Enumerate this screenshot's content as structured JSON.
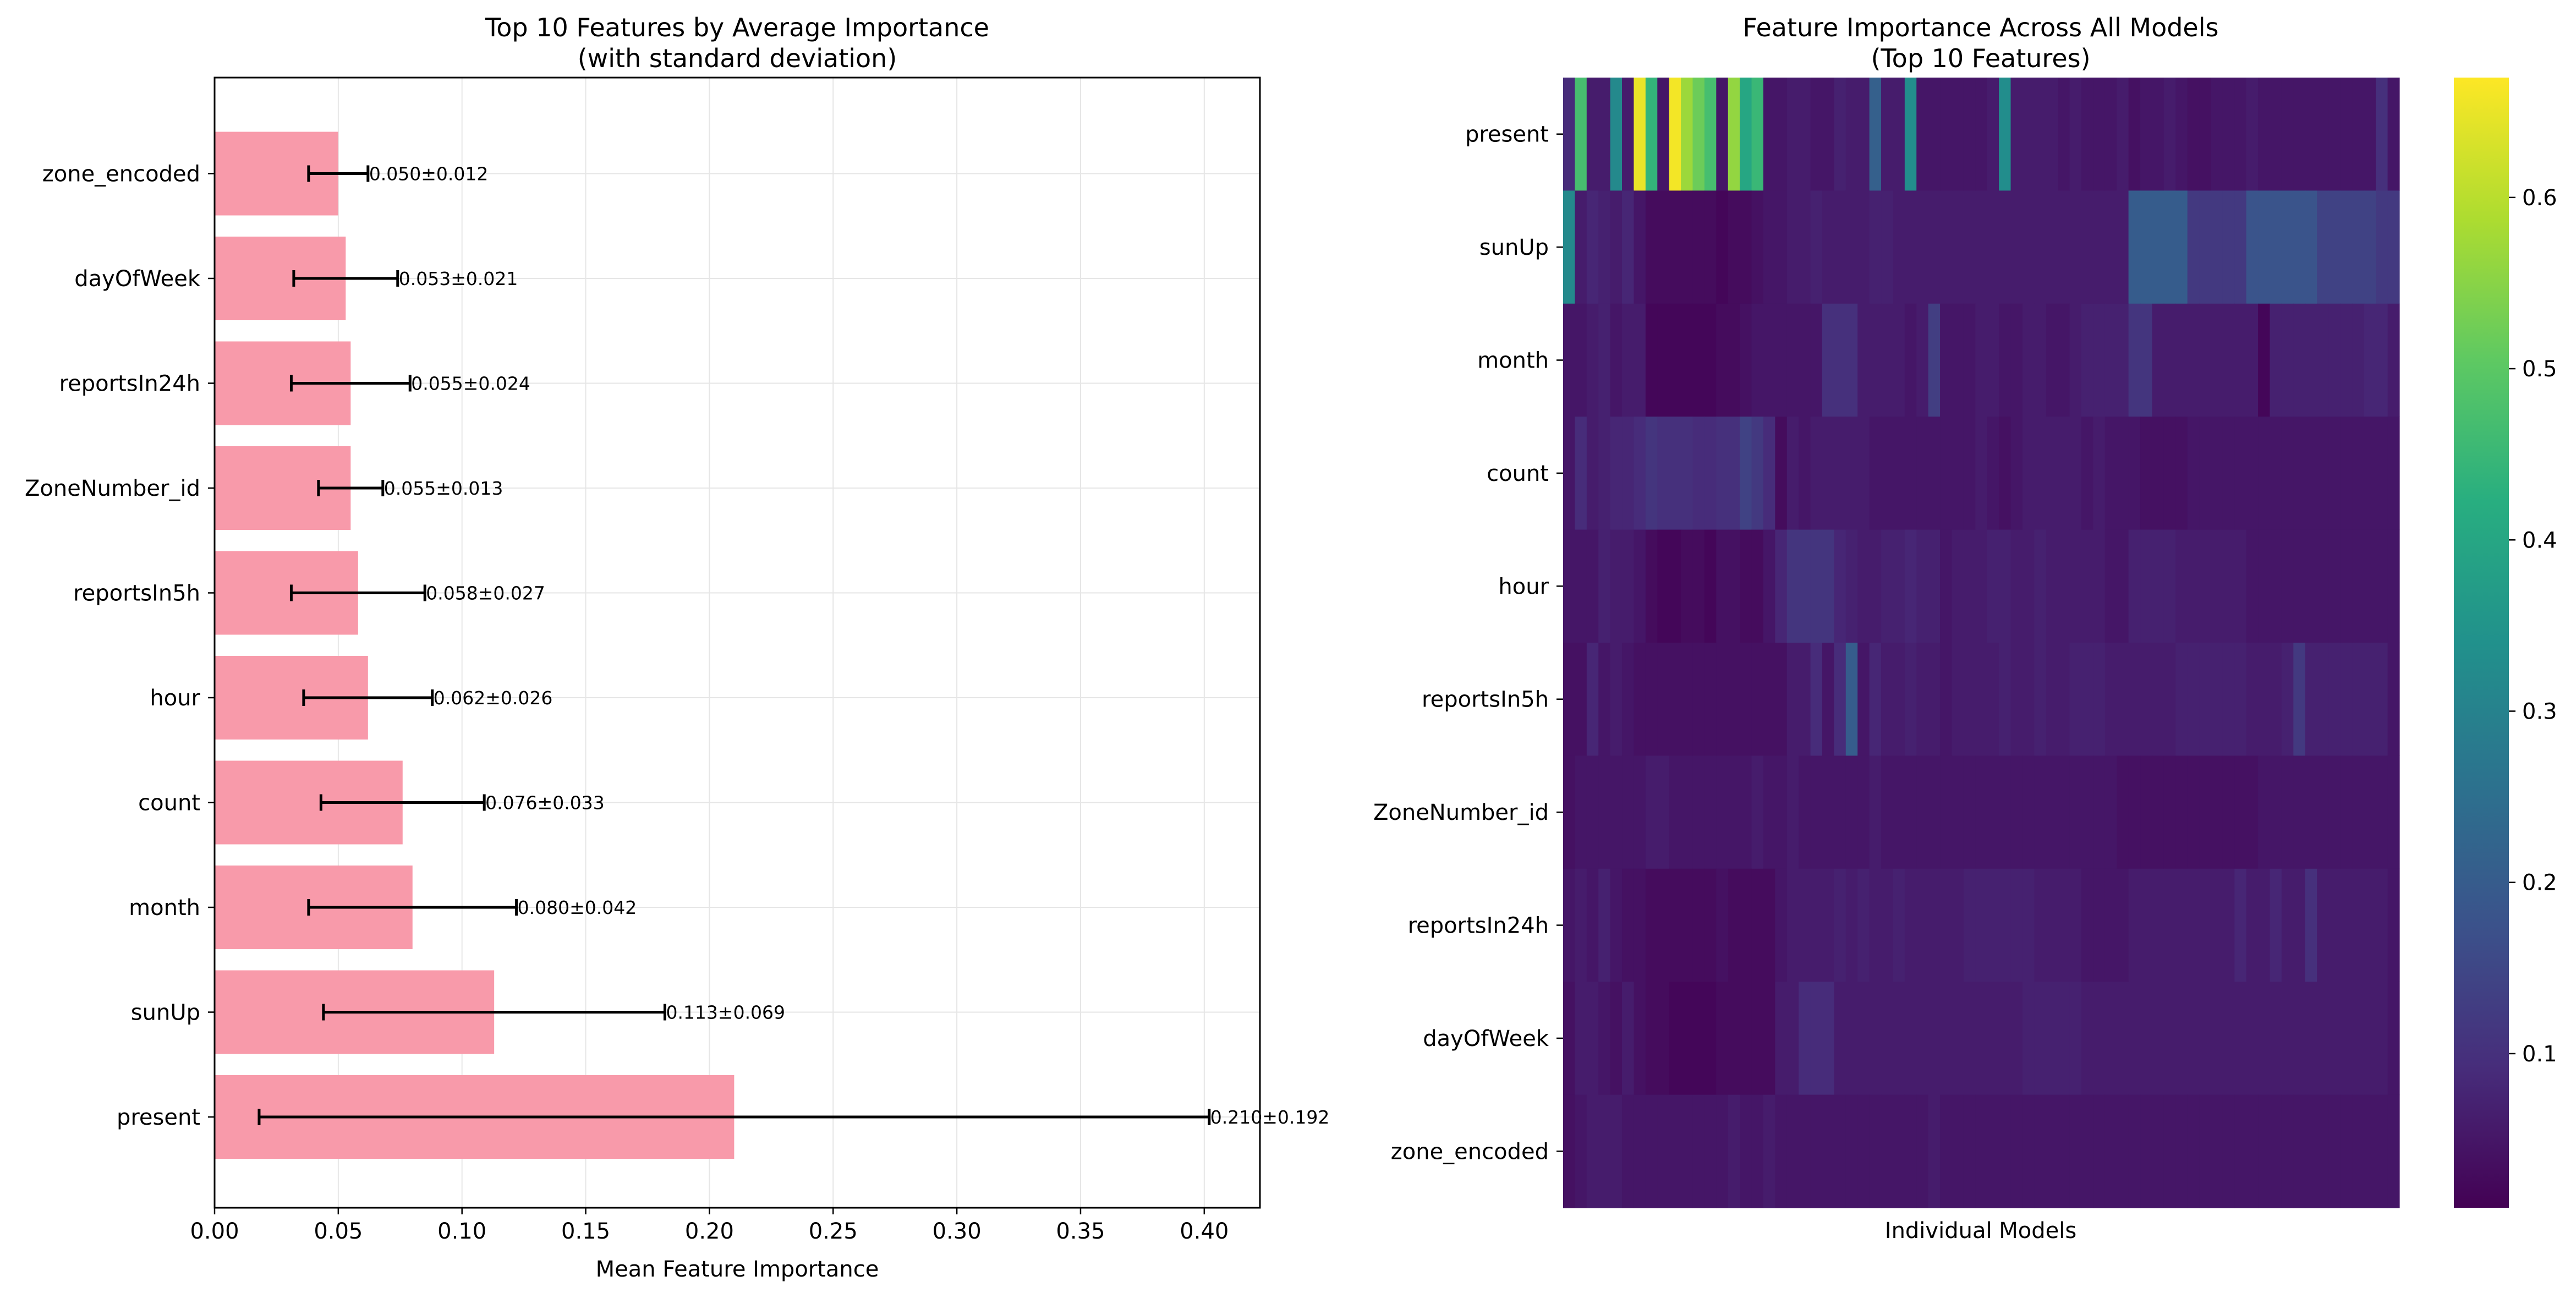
{
  "chart_data": [
    {
      "type": "bar",
      "orientation": "horizontal",
      "title": "Top 10 Features by Average Importance",
      "subtitle": "(with standard deviation)",
      "xlabel": "Mean Feature Importance",
      "ylabel": "",
      "xlim": [
        0.0,
        0.4225
      ],
      "xticks": [
        "0.00",
        "0.05",
        "0.10",
        "0.15",
        "0.20",
        "0.25",
        "0.30",
        "0.35",
        "0.40"
      ],
      "grid": true,
      "bar_color": "#f89aaa",
      "categories": [
        "present",
        "sunUp",
        "month",
        "count",
        "hour",
        "reportsIn5h",
        "ZoneNumber_id",
        "reportsIn24h",
        "dayOfWeek",
        "zone_encoded"
      ],
      "values": [
        0.21,
        0.113,
        0.08,
        0.076,
        0.062,
        0.058,
        0.055,
        0.055,
        0.053,
        0.05
      ],
      "errors": [
        0.192,
        0.069,
        0.042,
        0.033,
        0.026,
        0.027,
        0.013,
        0.024,
        0.021,
        0.012
      ],
      "value_labels": [
        "0.210±0.192",
        "0.113±0.069",
        "0.080±0.042",
        "0.076±0.033",
        "0.062±0.026",
        "0.058±0.027",
        "0.055±0.013",
        "0.055±0.024",
        "0.053±0.021",
        "0.050±0.012"
      ]
    },
    {
      "type": "heatmap",
      "title": "Feature Importance Across All Models",
      "subtitle": "(Top 10 Features)",
      "xlabel": "Individual Models",
      "ylabel": "",
      "colormap": "viridis",
      "vmin": 0.01,
      "vmax": 0.67,
      "colorbar_ticks": [
        0.1,
        0.2,
        0.3,
        0.4,
        0.5,
        0.6
      ],
      "colorbar_tick_labels": [
        "0.1",
        "0.2",
        "0.3",
        "0.4",
        "0.5",
        "0.6"
      ],
      "rows": [
        "present",
        "sunUp",
        "month",
        "count",
        "hour",
        "reportsIn5h",
        "ZoneNumber_id",
        "reportsIn24h",
        "dayOfWeek",
        "zone_encoded"
      ],
      "values": [
        [
          0.09,
          0.47,
          0.06,
          0.06,
          0.32,
          0.06,
          0.65,
          0.44,
          0.05,
          0.66,
          0.57,
          0.52,
          0.47,
          0.05,
          0.56,
          0.4,
          0.45,
          0.05,
          0.05,
          0.06,
          0.06,
          0.05,
          0.05,
          0.07,
          0.06,
          0.06,
          0.21,
          0.06,
          0.06,
          0.33,
          0.05,
          0.05,
          0.05,
          0.05,
          0.05,
          0.05,
          0.06,
          0.33,
          0.06,
          0.06,
          0.06,
          0.06,
          0.05,
          0.06,
          0.05,
          0.05,
          0.05,
          0.06,
          0.04,
          0.05,
          0.05,
          0.06,
          0.05,
          0.04,
          0.04,
          0.05,
          0.05,
          0.05,
          0.06,
          0.05,
          0.05,
          0.05,
          0.05,
          0.05,
          0.05,
          0.05,
          0.05,
          0.05,
          0.05,
          0.1,
          0.05
        ],
        [
          0.32,
          0.06,
          0.08,
          0.07,
          0.06,
          0.08,
          0.05,
          0.03,
          0.03,
          0.03,
          0.03,
          0.03,
          0.03,
          0.02,
          0.03,
          0.03,
          0.04,
          0.05,
          0.05,
          0.06,
          0.06,
          0.07,
          0.06,
          0.06,
          0.06,
          0.06,
          0.07,
          0.07,
          0.06,
          0.06,
          0.06,
          0.06,
          0.06,
          0.06,
          0.06,
          0.06,
          0.06,
          0.06,
          0.06,
          0.06,
          0.06,
          0.06,
          0.06,
          0.06,
          0.06,
          0.06,
          0.06,
          0.06,
          0.2,
          0.2,
          0.2,
          0.2,
          0.2,
          0.12,
          0.12,
          0.12,
          0.12,
          0.12,
          0.18,
          0.18,
          0.18,
          0.18,
          0.18,
          0.18,
          0.14,
          0.14,
          0.14,
          0.14,
          0.14,
          0.12,
          0.12
        ],
        [
          0.05,
          0.05,
          0.06,
          0.07,
          0.05,
          0.06,
          0.06,
          0.02,
          0.02,
          0.02,
          0.02,
          0.02,
          0.02,
          0.03,
          0.03,
          0.04,
          0.05,
          0.05,
          0.05,
          0.05,
          0.05,
          0.05,
          0.1,
          0.1,
          0.1,
          0.06,
          0.06,
          0.06,
          0.06,
          0.05,
          0.06,
          0.13,
          0.05,
          0.05,
          0.05,
          0.06,
          0.06,
          0.05,
          0.05,
          0.06,
          0.06,
          0.05,
          0.05,
          0.06,
          0.07,
          0.07,
          0.07,
          0.07,
          0.11,
          0.11,
          0.06,
          0.06,
          0.06,
          0.06,
          0.06,
          0.06,
          0.06,
          0.06,
          0.06,
          0.02,
          0.07,
          0.07,
          0.07,
          0.07,
          0.07,
          0.07,
          0.07,
          0.07,
          0.08,
          0.08,
          0.06
        ],
        [
          0.05,
          0.09,
          0.06,
          0.07,
          0.08,
          0.08,
          0.09,
          0.11,
          0.1,
          0.1,
          0.1,
          0.09,
          0.09,
          0.1,
          0.1,
          0.14,
          0.12,
          0.09,
          0.03,
          0.06,
          0.05,
          0.06,
          0.06,
          0.06,
          0.06,
          0.06,
          0.05,
          0.05,
          0.05,
          0.05,
          0.05,
          0.05,
          0.05,
          0.05,
          0.05,
          0.06,
          0.05,
          0.04,
          0.05,
          0.06,
          0.06,
          0.06,
          0.06,
          0.06,
          0.05,
          0.06,
          0.05,
          0.05,
          0.05,
          0.04,
          0.04,
          0.04,
          0.04,
          0.05,
          0.05,
          0.05,
          0.05,
          0.05,
          0.05,
          0.05,
          0.05,
          0.05,
          0.05,
          0.05,
          0.05,
          0.05,
          0.05,
          0.05,
          0.05,
          0.05,
          0.05
        ],
        [
          0.05,
          0.05,
          0.05,
          0.07,
          0.06,
          0.06,
          0.05,
          0.03,
          0.02,
          0.02,
          0.03,
          0.03,
          0.02,
          0.04,
          0.04,
          0.03,
          0.03,
          0.05,
          0.08,
          0.11,
          0.11,
          0.11,
          0.11,
          0.08,
          0.07,
          0.06,
          0.06,
          0.07,
          0.07,
          0.08,
          0.07,
          0.07,
          0.05,
          0.06,
          0.06,
          0.06,
          0.07,
          0.07,
          0.06,
          0.06,
          0.07,
          0.06,
          0.06,
          0.06,
          0.06,
          0.06,
          0.05,
          0.05,
          0.07,
          0.07,
          0.07,
          0.07,
          0.06,
          0.06,
          0.06,
          0.06,
          0.06,
          0.06,
          0.05,
          0.05,
          0.05,
          0.05,
          0.05,
          0.05,
          0.05,
          0.05,
          0.05,
          0.05,
          0.05,
          0.05,
          0.05
        ],
        [
          0.04,
          0.04,
          0.08,
          0.05,
          0.06,
          0.05,
          0.04,
          0.04,
          0.04,
          0.04,
          0.04,
          0.04,
          0.04,
          0.04,
          0.04,
          0.04,
          0.04,
          0.04,
          0.04,
          0.06,
          0.06,
          0.09,
          0.05,
          0.09,
          0.2,
          0.05,
          0.08,
          0.06,
          0.06,
          0.07,
          0.06,
          0.06,
          0.05,
          0.06,
          0.06,
          0.06,
          0.06,
          0.07,
          0.06,
          0.06,
          0.07,
          0.06,
          0.06,
          0.07,
          0.07,
          0.07,
          0.06,
          0.06,
          0.06,
          0.06,
          0.06,
          0.06,
          0.07,
          0.07,
          0.07,
          0.07,
          0.07,
          0.07,
          0.06,
          0.06,
          0.06,
          0.07,
          0.12,
          0.07,
          0.07,
          0.07,
          0.07,
          0.07,
          0.07,
          0.07,
          0.05
        ],
        [
          0.04,
          0.05,
          0.05,
          0.05,
          0.05,
          0.05,
          0.05,
          0.06,
          0.06,
          0.05,
          0.05,
          0.05,
          0.05,
          0.05,
          0.05,
          0.05,
          0.06,
          0.05,
          0.05,
          0.06,
          0.05,
          0.05,
          0.05,
          0.05,
          0.05,
          0.05,
          0.06,
          0.05,
          0.05,
          0.05,
          0.05,
          0.05,
          0.05,
          0.05,
          0.05,
          0.05,
          0.05,
          0.05,
          0.05,
          0.05,
          0.05,
          0.05,
          0.05,
          0.05,
          0.05,
          0.05,
          0.05,
          0.04,
          0.04,
          0.04,
          0.04,
          0.04,
          0.04,
          0.04,
          0.04,
          0.04,
          0.04,
          0.04,
          0.04,
          0.05,
          0.05,
          0.05,
          0.05,
          0.05,
          0.05,
          0.05,
          0.05,
          0.05,
          0.05,
          0.05,
          0.05
        ],
        [
          0.05,
          0.06,
          0.05,
          0.07,
          0.05,
          0.04,
          0.04,
          0.03,
          0.03,
          0.03,
          0.03,
          0.03,
          0.03,
          0.04,
          0.03,
          0.03,
          0.03,
          0.03,
          0.05,
          0.06,
          0.06,
          0.06,
          0.06,
          0.07,
          0.06,
          0.07,
          0.06,
          0.06,
          0.07,
          0.06,
          0.06,
          0.06,
          0.06,
          0.06,
          0.07,
          0.07,
          0.07,
          0.07,
          0.07,
          0.07,
          0.06,
          0.06,
          0.06,
          0.06,
          0.05,
          0.05,
          0.05,
          0.05,
          0.06,
          0.06,
          0.06,
          0.06,
          0.06,
          0.06,
          0.06,
          0.06,
          0.06,
          0.08,
          0.06,
          0.06,
          0.08,
          0.06,
          0.06,
          0.1,
          0.06,
          0.06,
          0.06,
          0.06,
          0.06,
          0.06,
          0.05
        ],
        [
          0.04,
          0.06,
          0.06,
          0.05,
          0.04,
          0.06,
          0.04,
          0.03,
          0.03,
          0.02,
          0.02,
          0.02,
          0.02,
          0.03,
          0.03,
          0.03,
          0.03,
          0.03,
          0.06,
          0.06,
          0.09,
          0.09,
          0.09,
          0.06,
          0.06,
          0.06,
          0.06,
          0.06,
          0.06,
          0.06,
          0.06,
          0.06,
          0.06,
          0.06,
          0.06,
          0.06,
          0.06,
          0.06,
          0.06,
          0.07,
          0.07,
          0.07,
          0.07,
          0.07,
          0.06,
          0.06,
          0.06,
          0.06,
          0.06,
          0.06,
          0.06,
          0.06,
          0.06,
          0.06,
          0.06,
          0.06,
          0.06,
          0.06,
          0.06,
          0.06,
          0.06,
          0.06,
          0.06,
          0.06,
          0.06,
          0.06,
          0.06,
          0.06,
          0.06,
          0.06,
          0.05
        ],
        [
          0.04,
          0.05,
          0.06,
          0.06,
          0.06,
          0.05,
          0.05,
          0.05,
          0.05,
          0.05,
          0.05,
          0.05,
          0.05,
          0.05,
          0.06,
          0.05,
          0.05,
          0.06,
          0.05,
          0.05,
          0.05,
          0.05,
          0.05,
          0.05,
          0.05,
          0.05,
          0.05,
          0.05,
          0.05,
          0.05,
          0.05,
          0.06,
          0.05,
          0.05,
          0.05,
          0.05,
          0.05,
          0.05,
          0.05,
          0.05,
          0.05,
          0.05,
          0.05,
          0.05,
          0.05,
          0.05,
          0.05,
          0.05,
          0.05,
          0.05,
          0.05,
          0.05,
          0.05,
          0.05,
          0.05,
          0.05,
          0.05,
          0.05,
          0.05,
          0.05,
          0.05,
          0.05,
          0.05,
          0.05,
          0.05,
          0.05,
          0.05,
          0.05,
          0.05,
          0.05,
          0.05
        ]
      ]
    }
  ]
}
